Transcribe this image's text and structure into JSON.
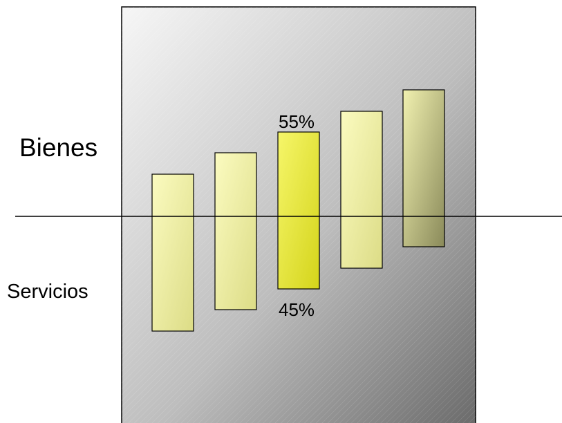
{
  "labels": {
    "top": "Bienes",
    "bottom": "Servicios"
  },
  "highlight": {
    "top_pct": "55%",
    "bottom_pct": "45%"
  },
  "colors": {
    "bar_fill": "#f3f3a0",
    "bar_highlight": "#e6e62a",
    "panel_light": "#f4f4f4",
    "panel_dark": "#6f6f6f",
    "line": "#000000"
  },
  "bars": [
    {
      "name": "bar-1",
      "highlighted": false
    },
    {
      "name": "bar-2",
      "highlighted": false
    },
    {
      "name": "bar-3",
      "highlighted": true
    },
    {
      "name": "bar-4",
      "highlighted": false
    },
    {
      "name": "bar-5",
      "highlighted": false
    }
  ]
}
